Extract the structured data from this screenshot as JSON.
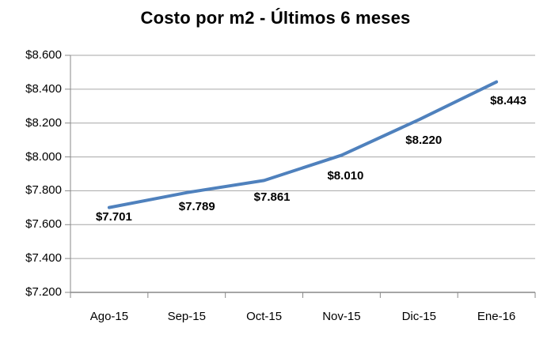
{
  "chart_data": {
    "type": "line",
    "title": "Costo por m2 - Últimos 6 meses",
    "categories": [
      "Ago-15",
      "Sep-15",
      "Oct-15",
      "Nov-15",
      "Dic-15",
      "Ene-16"
    ],
    "series": [
      {
        "name": "Costo por m2",
        "values": [
          7701,
          7789,
          7861,
          8010,
          8220,
          8443
        ],
        "data_labels": [
          "$7.701",
          "$7.789",
          "$7.861",
          "$8.010",
          "$8.220",
          "$8.443"
        ]
      }
    ],
    "xlabel": "",
    "ylabel": "",
    "ylim": [
      7200,
      8600
    ],
    "ytick_step": 200,
    "ytick_labels": [
      "$7.200",
      "$7.400",
      "$7.600",
      "$7.800",
      "$8.000",
      "$8.200",
      "$8.400",
      "$8.600"
    ],
    "grid": "horizontal",
    "legend": "none",
    "colors": {
      "line": "#4F81BD",
      "gridline": "#A6A6A6",
      "axis": "#898989",
      "text": "#000000",
      "background": "#FFFFFF"
    }
  }
}
